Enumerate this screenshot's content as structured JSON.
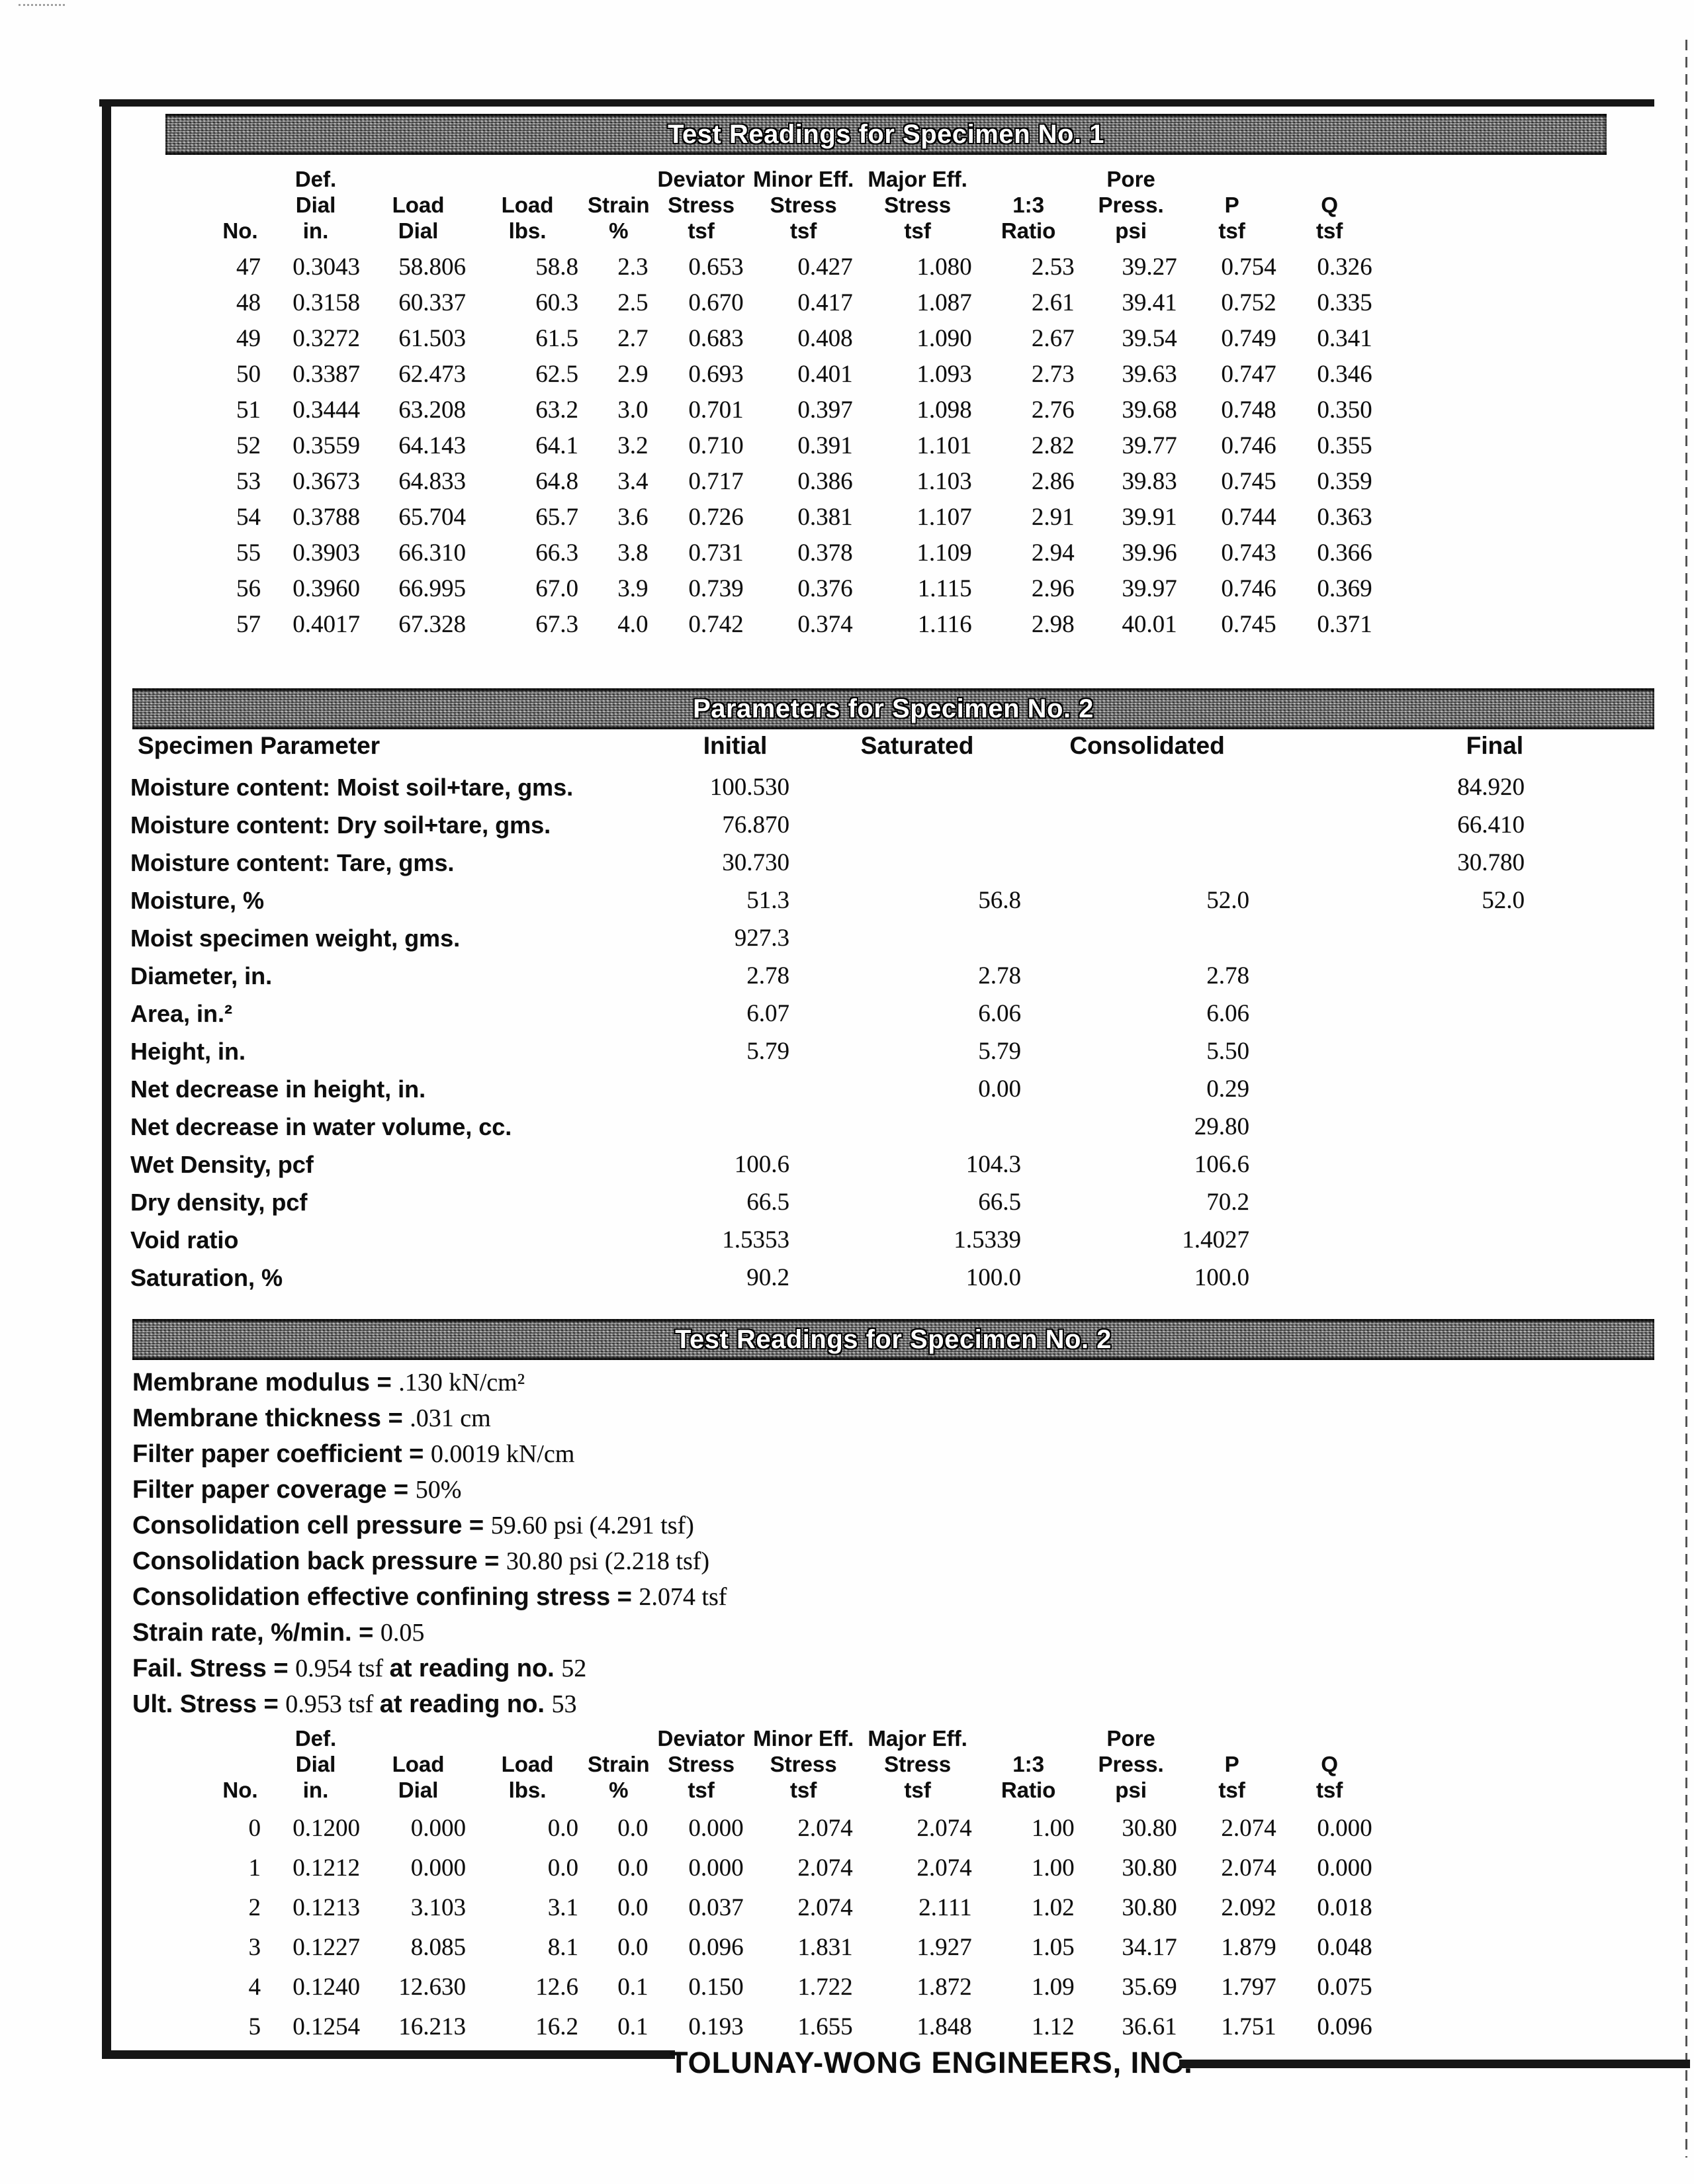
{
  "banners": {
    "readings1": "Test Readings for Specimen No. 1",
    "parameters": "Parameters for Specimen No. 2",
    "readings2": "Test Readings for Specimen No. 2"
  },
  "readings_header": [
    [
      "No."
    ],
    [
      "Def.",
      "Dial",
      "in."
    ],
    [
      "Load",
      "Dial"
    ],
    [
      "Load",
      "lbs."
    ],
    [
      "Strain",
      "%"
    ],
    [
      "Deviator",
      "Stress",
      "tsf"
    ],
    [
      "Minor Eff.",
      "Stress",
      "tsf"
    ],
    [
      "Major Eff.",
      "Stress",
      "tsf"
    ],
    [
      "1:3",
      "Ratio"
    ],
    [
      "Pore",
      "Press.",
      "psi"
    ],
    [
      "P",
      "tsf"
    ],
    [
      "Q",
      "tsf"
    ]
  ],
  "readings1": [
    [
      "47",
      "0.3043",
      "58.806",
      "58.8",
      "2.3",
      "0.653",
      "0.427",
      "1.080",
      "2.53",
      "39.27",
      "0.754",
      "0.326"
    ],
    [
      "48",
      "0.3158",
      "60.337",
      "60.3",
      "2.5",
      "0.670",
      "0.417",
      "1.087",
      "2.61",
      "39.41",
      "0.752",
      "0.335"
    ],
    [
      "49",
      "0.3272",
      "61.503",
      "61.5",
      "2.7",
      "0.683",
      "0.408",
      "1.090",
      "2.67",
      "39.54",
      "0.749",
      "0.341"
    ],
    [
      "50",
      "0.3387",
      "62.473",
      "62.5",
      "2.9",
      "0.693",
      "0.401",
      "1.093",
      "2.73",
      "39.63",
      "0.747",
      "0.346"
    ],
    [
      "51",
      "0.3444",
      "63.208",
      "63.2",
      "3.0",
      "0.701",
      "0.397",
      "1.098",
      "2.76",
      "39.68",
      "0.748",
      "0.350"
    ],
    [
      "52",
      "0.3559",
      "64.143",
      "64.1",
      "3.2",
      "0.710",
      "0.391",
      "1.101",
      "2.82",
      "39.77",
      "0.746",
      "0.355"
    ],
    [
      "53",
      "0.3673",
      "64.833",
      "64.8",
      "3.4",
      "0.717",
      "0.386",
      "1.103",
      "2.86",
      "39.83",
      "0.745",
      "0.359"
    ],
    [
      "54",
      "0.3788",
      "65.704",
      "65.7",
      "3.6",
      "0.726",
      "0.381",
      "1.107",
      "2.91",
      "39.91",
      "0.744",
      "0.363"
    ],
    [
      "55",
      "0.3903",
      "66.310",
      "66.3",
      "3.8",
      "0.731",
      "0.378",
      "1.109",
      "2.94",
      "39.96",
      "0.743",
      "0.366"
    ],
    [
      "56",
      "0.3960",
      "66.995",
      "67.0",
      "3.9",
      "0.739",
      "0.376",
      "1.115",
      "2.96",
      "39.97",
      "0.746",
      "0.369"
    ],
    [
      "57",
      "0.4017",
      "67.328",
      "67.3",
      "4.0",
      "0.742",
      "0.374",
      "1.116",
      "2.98",
      "40.01",
      "0.745",
      "0.371"
    ]
  ],
  "parameters": {
    "headers": [
      "Specimen Parameter",
      "Initial",
      "Saturated",
      "Consolidated",
      "Final"
    ],
    "rows": [
      [
        "Moisture content: Moist soil+tare, gms.",
        "100.530",
        "",
        "",
        "84.920"
      ],
      [
        "Moisture content: Dry soil+tare, gms.",
        "76.870",
        "",
        "",
        "66.410"
      ],
      [
        "Moisture content: Tare, gms.",
        "30.730",
        "",
        "",
        "30.780"
      ],
      [
        "Moisture, %",
        "51.3",
        "56.8",
        "52.0",
        "52.0"
      ],
      [
        "Moist specimen weight, gms.",
        "927.3",
        "",
        "",
        ""
      ],
      [
        "Diameter, in.",
        "2.78",
        "2.78",
        "2.78",
        ""
      ],
      [
        "Area, in.²",
        "6.07",
        "6.06",
        "6.06",
        ""
      ],
      [
        "Height, in.",
        "5.79",
        "5.79",
        "5.50",
        ""
      ],
      [
        "Net decrease in height, in.",
        "",
        "0.00",
        "0.29",
        ""
      ],
      [
        "Net decrease in water volume, cc.",
        "",
        "",
        "29.80",
        ""
      ],
      [
        "Wet Density, pcf",
        "100.6",
        "104.3",
        "106.6",
        ""
      ],
      [
        "Dry density, pcf",
        "66.5",
        "66.5",
        "70.2",
        ""
      ],
      [
        "Void ratio",
        "1.5353",
        "1.5339",
        "1.4027",
        ""
      ],
      [
        "Saturation, %",
        "90.2",
        "100.0",
        "100.0",
        ""
      ]
    ]
  },
  "info_lines": [
    [
      {
        "b": 1,
        "t": "Membrane modulus = "
      },
      {
        "b": 0,
        "t": ".130 kN/cm²"
      }
    ],
    [
      {
        "b": 1,
        "t": "Membrane thickness = "
      },
      {
        "b": 0,
        "t": ".031 cm"
      }
    ],
    [
      {
        "b": 1,
        "t": "Filter paper coefficient = "
      },
      {
        "b": 0,
        "t": "0.0019 kN/cm"
      }
    ],
    [
      {
        "b": 1,
        "t": "Filter paper coverage = "
      },
      {
        "b": 0,
        "t": "50%"
      }
    ],
    [
      {
        "b": 1,
        "t": "Consolidation cell pressure = "
      },
      {
        "b": 0,
        "t": "59.60 psi (4.291 tsf)"
      }
    ],
    [
      {
        "b": 1,
        "t": "Consolidation back pressure = "
      },
      {
        "b": 0,
        "t": "30.80 psi (2.218 tsf)"
      }
    ],
    [
      {
        "b": 1,
        "t": "Consolidation effective confining stress = "
      },
      {
        "b": 0,
        "t": "2.074 tsf"
      }
    ],
    [
      {
        "b": 1,
        "t": "Strain rate, %/min. = "
      },
      {
        "b": 0,
        "t": "0.05"
      }
    ],
    [
      {
        "b": 1,
        "t": "Fail. Stress = "
      },
      {
        "b": 0,
        "t": "0.954 tsf "
      },
      {
        "b": 1,
        "t": "at reading no. "
      },
      {
        "b": 0,
        "t": "52"
      }
    ],
    [
      {
        "b": 1,
        "t": "Ult. Stress = "
      },
      {
        "b": 0,
        "t": "0.953 tsf "
      },
      {
        "b": 1,
        "t": "at reading no. "
      },
      {
        "b": 0,
        "t": "53"
      }
    ]
  ],
  "readings2": [
    [
      "0",
      "0.1200",
      "0.000",
      "0.0",
      "0.0",
      "0.000",
      "2.074",
      "2.074",
      "1.00",
      "30.80",
      "2.074",
      "0.000"
    ],
    [
      "1",
      "0.1212",
      "0.000",
      "0.0",
      "0.0",
      "0.000",
      "2.074",
      "2.074",
      "1.00",
      "30.80",
      "2.074",
      "0.000"
    ],
    [
      "2",
      "0.1213",
      "3.103",
      "3.1",
      "0.0",
      "0.037",
      "2.074",
      "2.111",
      "1.02",
      "30.80",
      "2.092",
      "0.018"
    ],
    [
      "3",
      "0.1227",
      "8.085",
      "8.1",
      "0.0",
      "0.096",
      "1.831",
      "1.927",
      "1.05",
      "34.17",
      "1.879",
      "0.048"
    ],
    [
      "4",
      "0.1240",
      "12.630",
      "12.6",
      "0.1",
      "0.150",
      "1.722",
      "1.872",
      "1.09",
      "35.69",
      "1.797",
      "0.075"
    ],
    [
      "5",
      "0.1254",
      "16.213",
      "16.2",
      "0.1",
      "0.193",
      "1.655",
      "1.848",
      "1.12",
      "36.61",
      "1.751",
      "0.096"
    ]
  ],
  "footer": "TOLUNAY-WONG ENGINEERS, INC."
}
